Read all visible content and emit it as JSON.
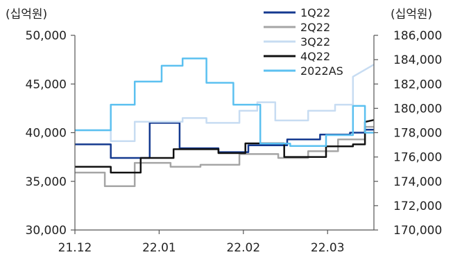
{
  "chart_data": {
    "type": "line",
    "left_unit": "(십억원)",
    "right_unit": "(십억원)",
    "x_ticks": [
      "21.12",
      "22.01",
      "22.02",
      "22.03"
    ],
    "y_left": {
      "min": 30000,
      "max": 50000,
      "ticks": [
        "30,000",
        "35,000",
        "40,000",
        "45,000",
        "50,000"
      ]
    },
    "y_right": {
      "min": 170000,
      "max": 186000,
      "ticks": [
        "170,000",
        "172,000",
        "174,000",
        "176,000",
        "178,000",
        "180,000",
        "182,000",
        "184,000",
        "186,000"
      ]
    },
    "legend_position": "top-right",
    "series": [
      {
        "name": "1Q22",
        "axis": "left",
        "color": "#14398f",
        "x": [
          0.0,
          0.12,
          0.12,
          0.25,
          0.25,
          0.35,
          0.35,
          0.48,
          0.48,
          0.58,
          0.58,
          0.71,
          0.71,
          0.82,
          0.82,
          0.92,
          0.92,
          0.97,
          0.97,
          1.0
        ],
        "values": [
          38800,
          38800,
          37400,
          37400,
          41000,
          41000,
          38400,
          38400,
          38000,
          38000,
          38700,
          38700,
          39300,
          39300,
          39800,
          39800,
          40000,
          40000,
          40300,
          40300
        ]
      },
      {
        "name": "2Q22",
        "axis": "left",
        "color": "#a5a5a5",
        "x": [
          0.0,
          0.1,
          0.1,
          0.2,
          0.2,
          0.32,
          0.32,
          0.42,
          0.42,
          0.55,
          0.55,
          0.68,
          0.68,
          0.78,
          0.78,
          0.88,
          0.88,
          0.97,
          0.97,
          1.0
        ],
        "values": [
          35900,
          35900,
          34500,
          34500,
          36900,
          36900,
          36500,
          36500,
          36700,
          36700,
          37800,
          37800,
          37400,
          37400,
          38100,
          38100,
          39300,
          39300,
          40600,
          40600
        ]
      },
      {
        "name": "3Q22",
        "axis": "right",
        "color": "#c7dcf2",
        "x": [
          0.0,
          0.12,
          0.12,
          0.2,
          0.2,
          0.36,
          0.36,
          0.44,
          0.44,
          0.55,
          0.55,
          0.61,
          0.61,
          0.67,
          0.67,
          0.78,
          0.78,
          0.87,
          0.87,
          0.93,
          0.93,
          1.0
        ],
        "values": [
          178200,
          178200,
          177300,
          177300,
          178900,
          178900,
          179200,
          179200,
          178800,
          178800,
          179800,
          179800,
          180500,
          180500,
          179000,
          179000,
          179800,
          179800,
          180300,
          180300,
          182600,
          183600
        ]
      },
      {
        "name": "4Q22",
        "axis": "left",
        "color": "#111111",
        "x": [
          0.0,
          0.12,
          0.12,
          0.22,
          0.22,
          0.33,
          0.33,
          0.48,
          0.48,
          0.57,
          0.57,
          0.7,
          0.7,
          0.84,
          0.84,
          0.93,
          0.93,
          0.97,
          0.97,
          1.0
        ],
        "values": [
          36500,
          36500,
          35900,
          35900,
          37400,
          37400,
          38300,
          38300,
          37900,
          37900,
          38900,
          38900,
          37500,
          37500,
          38600,
          38600,
          38800,
          38800,
          41100,
          41300
        ]
      },
      {
        "name": "2022AS",
        "axis": "right",
        "color": "#5bc0f0",
        "x": [
          0.0,
          0.12,
          0.12,
          0.2,
          0.2,
          0.29,
          0.29,
          0.36,
          0.36,
          0.44,
          0.44,
          0.53,
          0.53,
          0.62,
          0.62,
          0.72,
          0.72,
          0.84,
          0.84,
          0.93,
          0.93,
          0.97,
          0.97,
          1.0
        ],
        "values": [
          178200,
          178200,
          180300,
          180300,
          182200,
          182200,
          183500,
          183500,
          184100,
          184100,
          182100,
          182100,
          180300,
          180300,
          177100,
          177100,
          176900,
          176900,
          177800,
          177800,
          180200,
          180200,
          178000,
          178000
        ]
      }
    ]
  }
}
